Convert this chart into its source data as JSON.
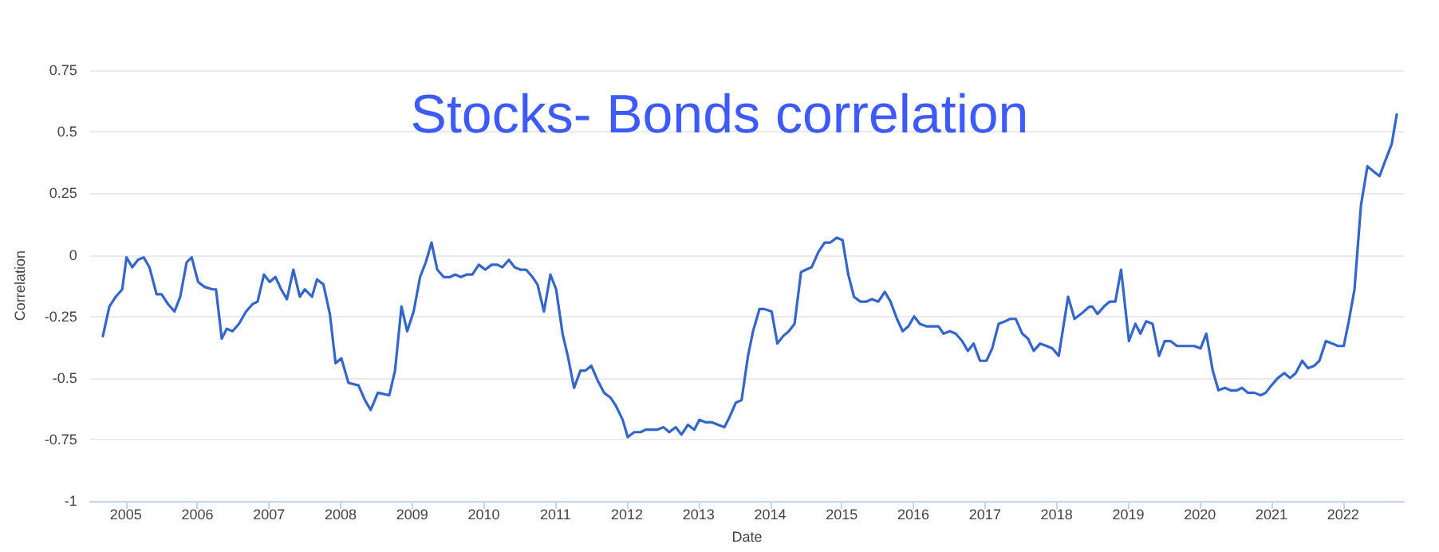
{
  "chart_data": {
    "type": "line",
    "title": "Stocks- Bonds correlation",
    "xlabel": "Date",
    "ylabel": "Correlation",
    "x": [
      2004.68,
      2004.77,
      2004.86,
      2004.95,
      2005.01,
      2005.09,
      2005.17,
      2005.25,
      2005.33,
      2005.43,
      2005.5,
      2005.59,
      2005.68,
      2005.76,
      2005.85,
      2005.92,
      2006.01,
      2006.1,
      2006.21,
      2006.26,
      2006.34,
      2006.41,
      2006.49,
      2006.58,
      2006.68,
      2006.77,
      2006.84,
      2006.93,
      2007.01,
      2007.09,
      2007.17,
      2007.25,
      2007.34,
      2007.43,
      2007.5,
      2007.6,
      2007.67,
      2007.76,
      2007.85,
      2007.93,
      2008.01,
      2008.11,
      2008.25,
      2008.34,
      2008.42,
      2008.52,
      2008.68,
      2008.76,
      2008.85,
      2008.93,
      2009.02,
      2009.11,
      2009.19,
      2009.27,
      2009.35,
      2009.44,
      2009.53,
      2009.6,
      2009.68,
      2009.76,
      2009.84,
      2009.93,
      2010.02,
      2010.11,
      2010.19,
      2010.26,
      2010.35,
      2010.43,
      2010.51,
      2010.59,
      2010.68,
      2010.75,
      2010.84,
      2010.93,
      2011.01,
      2011.1,
      2011.18,
      2011.26,
      2011.35,
      2011.42,
      2011.5,
      2011.59,
      2011.68,
      2011.77,
      2011.84,
      2011.94,
      2012.01,
      2012.1,
      2012.19,
      2012.26,
      2012.35,
      2012.42,
      2012.51,
      2012.59,
      2012.68,
      2012.76,
      2012.85,
      2012.94,
      2013.01,
      2013.1,
      2013.19,
      2013.27,
      2013.36,
      2013.43,
      2013.52,
      2013.6,
      2013.69,
      2013.76,
      2013.85,
      2013.92,
      2014.02,
      2014.1,
      2014.18,
      2014.26,
      2014.34,
      2014.43,
      2014.5,
      2014.58,
      2014.67,
      2014.76,
      2014.84,
      2014.93,
      2015.01,
      2015.09,
      2015.17,
      2015.26,
      2015.34,
      2015.42,
      2015.51,
      2015.6,
      2015.68,
      2015.77,
      2015.85,
      2015.93,
      2016.01,
      2016.09,
      2016.18,
      2016.26,
      2016.35,
      2016.42,
      2016.51,
      2016.59,
      2016.68,
      2016.76,
      2016.84,
      2016.93,
      2017.02,
      2017.1,
      2017.19,
      2017.28,
      2017.35,
      2017.43,
      2017.52,
      2017.6,
      2017.68,
      2017.77,
      2017.86,
      2017.94,
      2018.03,
      2018.16,
      2018.25,
      2018.34,
      2018.46,
      2018.5,
      2018.57,
      2018.66,
      2018.74,
      2018.82,
      2018.9,
      2019.01,
      2019.1,
      2019.17,
      2019.25,
      2019.34,
      2019.43,
      2019.51,
      2019.59,
      2019.68,
      2019.76,
      2019.85,
      2019.92,
      2020.01,
      2020.09,
      2020.18,
      2020.26,
      2020.35,
      2020.43,
      2020.52,
      2020.59,
      2020.67,
      2020.76,
      2020.85,
      2020.92,
      2021.0,
      2021.09,
      2021.18,
      2021.26,
      2021.34,
      2021.43,
      2021.51,
      2021.6,
      2021.67,
      2021.76,
      2021.85,
      2021.93,
      2022.01,
      2022.08,
      2022.16,
      2022.25,
      2022.34,
      2022.42,
      2022.51,
      2022.6,
      2022.68,
      2022.75
    ],
    "series": [
      {
        "color": "#3366cc",
        "values": [
          -0.33,
          -0.21,
          -0.17,
          -0.14,
          -0.01,
          -0.05,
          -0.02,
          -0.01,
          -0.05,
          -0.16,
          -0.16,
          -0.2,
          -0.23,
          -0.17,
          -0.03,
          -0.01,
          -0.11,
          -0.13,
          -0.14,
          -0.14,
          -0.34,
          -0.3,
          -0.31,
          -0.28,
          -0.23,
          -0.2,
          -0.19,
          -0.08,
          -0.11,
          -0.09,
          -0.14,
          -0.18,
          -0.06,
          -0.17,
          -0.14,
          -0.17,
          -0.1,
          -0.12,
          -0.24,
          -0.44,
          -0.42,
          -0.52,
          -0.53,
          -0.59,
          -0.63,
          -0.56,
          -0.57,
          -0.47,
          -0.21,
          -0.31,
          -0.23,
          -0.09,
          -0.03,
          0.05,
          -0.06,
          -0.09,
          -0.09,
          -0.08,
          -0.09,
          -0.08,
          -0.08,
          -0.04,
          -0.06,
          -0.04,
          -0.04,
          -0.05,
          -0.02,
          -0.05,
          -0.06,
          -0.06,
          -0.09,
          -0.12,
          -0.23,
          -0.08,
          -0.14,
          -0.32,
          -0.42,
          -0.54,
          -0.47,
          -0.47,
          -0.45,
          -0.51,
          -0.56,
          -0.58,
          -0.61,
          -0.67,
          -0.74,
          -0.72,
          -0.72,
          -0.71,
          -0.71,
          -0.71,
          -0.7,
          -0.72,
          -0.7,
          -0.73,
          -0.69,
          -0.71,
          -0.67,
          -0.68,
          -0.68,
          -0.69,
          -0.7,
          -0.66,
          -0.6,
          -0.59,
          -0.41,
          -0.31,
          -0.22,
          -0.22,
          -0.23,
          -0.36,
          -0.33,
          -0.31,
          -0.28,
          -0.07,
          -0.06,
          -0.05,
          0.01,
          0.05,
          0.05,
          0.07,
          0.06,
          -0.08,
          -0.17,
          -0.19,
          -0.19,
          -0.18,
          -0.19,
          -0.15,
          -0.19,
          -0.26,
          -0.31,
          -0.29,
          -0.25,
          -0.28,
          -0.29,
          -0.29,
          -0.29,
          -0.32,
          -0.31,
          -0.32,
          -0.35,
          -0.39,
          -0.36,
          -0.43,
          -0.43,
          -0.38,
          -0.28,
          -0.27,
          -0.26,
          -0.26,
          -0.32,
          -0.34,
          -0.39,
          -0.36,
          -0.37,
          -0.38,
          -0.41,
          -0.17,
          -0.26,
          -0.24,
          -0.21,
          -0.21,
          -0.24,
          -0.21,
          -0.19,
          -0.19,
          -0.06,
          -0.35,
          -0.28,
          -0.32,
          -0.27,
          -0.28,
          -0.41,
          -0.35,
          -0.35,
          -0.37,
          -0.37,
          -0.37,
          -0.37,
          -0.38,
          -0.32,
          -0.47,
          -0.55,
          -0.54,
          -0.55,
          -0.55,
          -0.54,
          -0.56,
          -0.56,
          -0.57,
          -0.56,
          -0.53,
          -0.5,
          -0.48,
          -0.5,
          -0.48,
          -0.43,
          -0.46,
          -0.45,
          -0.43,
          -0.35,
          -0.36,
          -0.37,
          -0.37,
          -0.27,
          -0.14,
          0.2,
          0.36,
          0.34,
          0.32,
          0.39,
          0.45,
          0.57
        ]
      }
    ],
    "xlim": [
      2004.5,
      2022.85
    ],
    "xticks": [
      2005,
      2006,
      2007,
      2008,
      2009,
      2010,
      2011,
      2012,
      2013,
      2014,
      2015,
      2016,
      2017,
      2018,
      2019,
      2020,
      2021,
      2022
    ],
    "ylim": [
      -1,
      0.75
    ],
    "yticks": [
      -1,
      -0.75,
      -0.5,
      -0.25,
      0,
      0.25,
      0.5,
      0.75
    ],
    "grid": "y",
    "marker": "none",
    "line_style": "solid"
  }
}
